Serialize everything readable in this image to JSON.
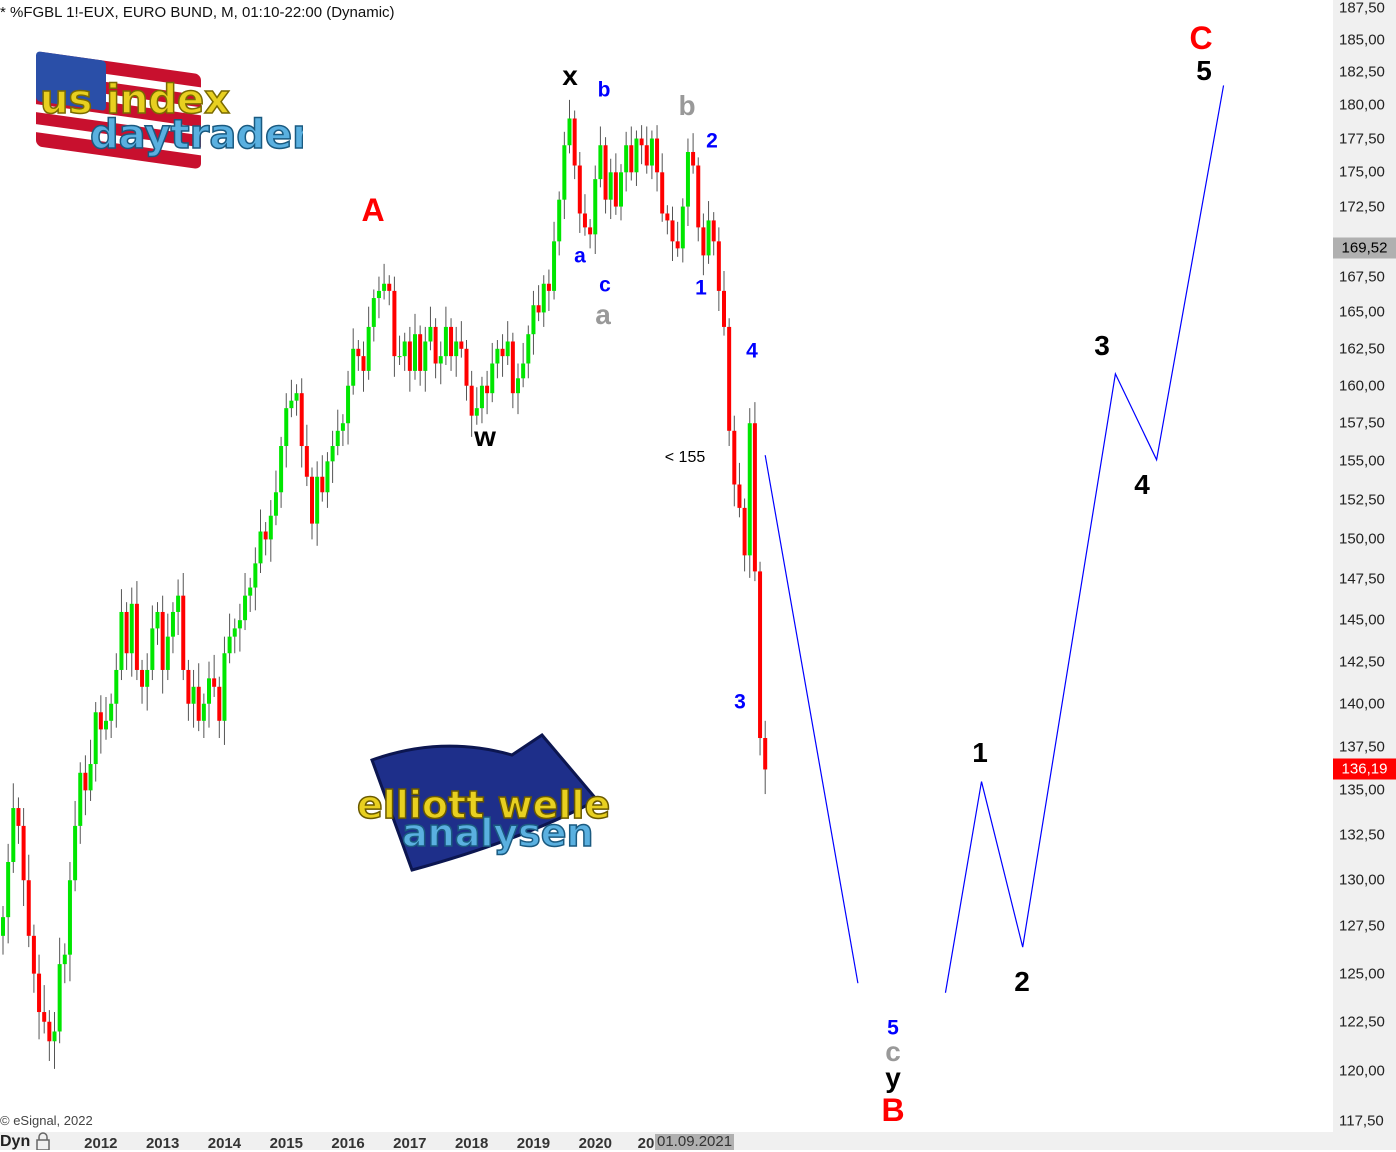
{
  "header": {
    "title": "* %FGBL 1!-EUX, EURO BUND, M, 01:10-22:00 (Dynamic)",
    "copyright": "© eSignal, 2022",
    "dyn_label": "Dyn",
    "lock_icon": "lock-icon"
  },
  "logos": {
    "top": "us index daytrader",
    "bottom": "elliott wellen analysen"
  },
  "colors": {
    "up": "#00e600",
    "down": "#ff0000",
    "wave_line": "#0000ff",
    "label_red": "#ff0000",
    "label_blue": "#0000ff",
    "label_gray": "#999999",
    "label_black": "#000000"
  },
  "annotations": {
    "lt155": "< 155"
  },
  "wave_labels": {
    "x": "x",
    "b_blue": "b",
    "b_gray": "b",
    "two_blue": "2",
    "A": "A",
    "a_blue": "a",
    "c_blue": "c",
    "a_gray": "a",
    "one_blue": "1",
    "four_blue": "4",
    "w": "w",
    "three_blue": "3",
    "C": "C",
    "five_black": "5",
    "three_black": "3",
    "four_black": "4",
    "one_black": "1",
    "two_black": "2",
    "five_blue": "5",
    "c_gray": "c",
    "y": "y",
    "B": "B"
  },
  "chart_data": {
    "type": "candlestick",
    "title": "* %FGBL 1!-EUX, EURO BUND, M, 01:10-22:00 (Dynamic)",
    "y_scale": "log",
    "ylim": [
      117.5,
      187.5
    ],
    "y_ticks": [
      "187,50",
      "185,00",
      "182,50",
      "180,00",
      "177,50",
      "175,00",
      "172,50",
      "167,50",
      "165,00",
      "162,50",
      "160,00",
      "157,50",
      "155,00",
      "152,50",
      "150,00",
      "147,50",
      "145,00",
      "142,50",
      "140,00",
      "137,50",
      "135,00",
      "132,50",
      "130,00",
      "127,50",
      "125,00",
      "122,50",
      "120,00",
      "117,50"
    ],
    "x_ticks": [
      "2012",
      "2013",
      "2014",
      "2015",
      "2016",
      "2017",
      "2018",
      "2019",
      "2020",
      "20"
    ],
    "cursor_date": "01.09.2021",
    "cursor_price": "169,52",
    "last_price": "136,19",
    "start_month": "2010-06",
    "monthly_close": [
      128,
      131,
      134,
      133,
      130,
      127,
      125,
      123,
      122.5,
      121.5,
      122,
      125.5,
      126,
      130,
      133,
      136,
      135,
      136.5,
      139.5,
      138.5,
      139,
      140,
      142,
      145.5,
      143,
      146,
      142,
      141,
      142,
      144.5,
      145.5,
      142,
      144,
      145.5,
      146.5,
      142,
      140,
      141,
      139,
      140,
      141.5,
      141,
      139,
      143,
      144,
      144.5,
      145,
      146.5,
      147,
      148.5,
      150.5,
      150,
      151.5,
      153,
      156,
      158.5,
      159,
      159.5,
      156,
      154,
      151,
      154,
      153,
      155,
      156,
      157,
      157.5,
      160,
      162.5,
      162,
      161,
      164,
      166,
      166.5,
      167,
      166.5,
      162,
      162,
      163,
      161,
      163.5,
      161,
      163,
      164,
      161.5,
      162,
      164,
      162,
      163,
      162.5,
      160,
      158,
      158.5,
      160,
      159.5,
      161.5,
      162.5,
      162,
      163,
      159.5,
      160.5,
      161.5,
      163.5,
      165.5,
      165,
      167,
      166.5,
      170,
      173,
      177,
      179,
      175.5,
      172,
      171,
      170.5,
      174.5,
      177,
      173,
      175,
      172.5,
      175,
      177,
      175,
      177.5,
      177,
      175.5,
      177.5,
      175,
      172,
      171.5,
      170,
      169.5,
      172.5,
      176.5,
      175.5,
      171,
      169,
      171.5,
      170,
      166.5,
      164,
      157,
      153.5,
      152,
      149,
      157.5,
      148,
      138,
      136.19
    ],
    "projection_line": [
      {
        "segment": 1,
        "points": [
          [
            "2022-10",
            155.4
          ],
          [
            "2024-04",
            124.5
          ]
        ]
      },
      {
        "segment": 2,
        "points": [
          [
            "2025-09",
            124
          ],
          [
            "2026-04",
            135.5
          ],
          [
            "2026-12",
            126.4
          ],
          [
            "2028-06",
            160.8
          ],
          [
            "2029-02",
            155.1
          ],
          [
            "2030-03",
            181.5
          ]
        ]
      }
    ]
  }
}
